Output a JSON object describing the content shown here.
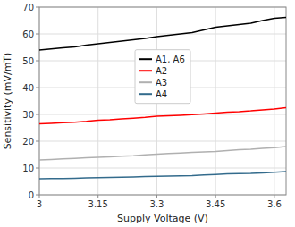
{
  "chart_data": {
    "type": "line",
    "xlabel": "Supply Voltage (V)",
    "ylabel": "Sensitivity (mV/mT)",
    "x": [
      3.0,
      3.03,
      3.06,
      3.09,
      3.12,
      3.15,
      3.18,
      3.21,
      3.24,
      3.27,
      3.3,
      3.33,
      3.36,
      3.39,
      3.42,
      3.45,
      3.48,
      3.51,
      3.54,
      3.57,
      3.6,
      3.63
    ],
    "xlim": [
      3.0,
      3.63
    ],
    "xticks": [
      3,
      3.15,
      3.3,
      3.45,
      3.6
    ],
    "ylim": [
      0,
      70
    ],
    "yticks": [
      0,
      10,
      20,
      30,
      40,
      50,
      60,
      70
    ],
    "series": [
      {
        "name": "A1, A6",
        "color": "#000000",
        "values": [
          54.0,
          54.4,
          54.8,
          55.2,
          55.8,
          56.3,
          56.8,
          57.3,
          57.8,
          58.3,
          59.0,
          59.5,
          60.0,
          60.5,
          61.5,
          62.5,
          63.0,
          63.5,
          64.0,
          65.0,
          65.8,
          66.2
        ]
      },
      {
        "name": "A2",
        "color": "#ff0000",
        "values": [
          26.5,
          26.7,
          26.9,
          27.1,
          27.4,
          27.8,
          28.0,
          28.3,
          28.6,
          28.9,
          29.3,
          29.5,
          29.7,
          29.9,
          30.2,
          30.5,
          30.8,
          31.0,
          31.3,
          31.7,
          32.0,
          32.5
        ]
      },
      {
        "name": "A3",
        "color": "#b0b0b0",
        "values": [
          13.0,
          13.2,
          13.4,
          13.6,
          13.8,
          14.0,
          14.2,
          14.4,
          14.6,
          14.9,
          15.2,
          15.4,
          15.6,
          15.8,
          16.0,
          16.2,
          16.5,
          16.8,
          17.0,
          17.3,
          17.6,
          18.0
        ]
      },
      {
        "name": "A4",
        "color": "#336b8c",
        "values": [
          6.0,
          6.05,
          6.1,
          6.2,
          6.3,
          6.4,
          6.5,
          6.6,
          6.7,
          6.8,
          6.9,
          7.0,
          7.1,
          7.2,
          7.4,
          7.6,
          7.8,
          7.9,
          8.0,
          8.2,
          8.4,
          8.7
        ]
      }
    ],
    "grid": true,
    "legend": "center"
  }
}
